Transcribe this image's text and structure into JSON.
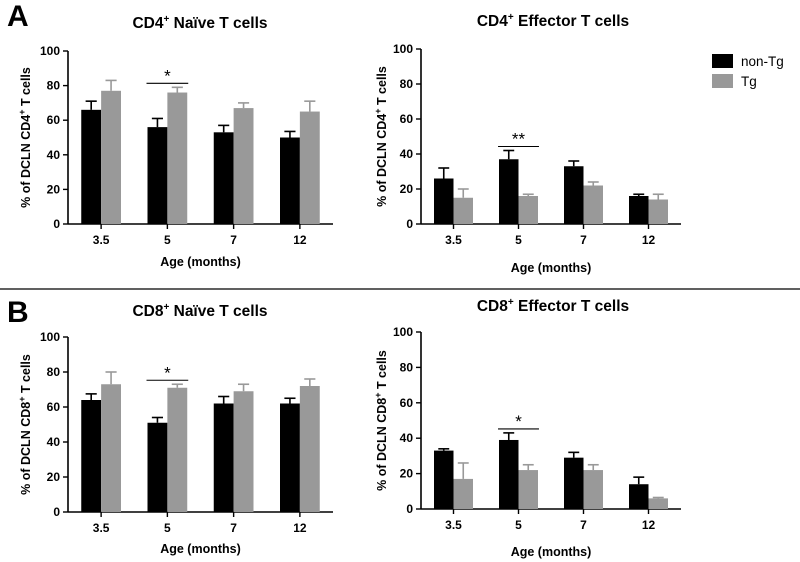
{
  "figure": {
    "panel_a_letter": "A",
    "panel_b_letter": "B",
    "legend": [
      {
        "label": "non-Tg",
        "color": "#000000"
      },
      {
        "label": "Tg",
        "color": "#999999"
      }
    ]
  },
  "chart_data": [
    {
      "type": "bar",
      "title_main": "CD4",
      "title_sup": "+",
      "title_rest": " Naïve T cells",
      "ylabel_main": "% of DCLN CD4",
      "ylabel_sup": "+",
      "ylabel_rest": " T cells",
      "xlabel": "Age (months)",
      "categories": [
        "3.5",
        "5",
        "7",
        "12"
      ],
      "ylim": [
        0,
        100
      ],
      "yticks": [
        "0",
        "20",
        "40",
        "60",
        "80",
        "100"
      ],
      "series": [
        {
          "name": "non-Tg",
          "color": "#000000",
          "values": [
            66,
            56,
            53,
            50
          ],
          "errors": [
            5,
            5,
            4,
            3.5
          ]
        },
        {
          "name": "Tg",
          "color": "#999999",
          "values": [
            77,
            76,
            67,
            65
          ],
          "errors": [
            6,
            3,
            3,
            6
          ]
        }
      ],
      "significance": [
        {
          "category_index": 1,
          "label": "*"
        }
      ]
    },
    {
      "type": "bar",
      "title_main": "CD4",
      "title_sup": "+",
      "title_rest": " Effector T cells",
      "ylabel_main": "% of DCLN CD4",
      "ylabel_sup": "+",
      "ylabel_rest": " T cells",
      "xlabel": "Age (months)",
      "categories": [
        "3.5",
        "5",
        "7",
        "12"
      ],
      "ylim": [
        0,
        100
      ],
      "yticks": [
        "0",
        "20",
        "40",
        "60",
        "80",
        "100"
      ],
      "series": [
        {
          "name": "non-Tg",
          "color": "#000000",
          "values": [
            26,
            37,
            33,
            16
          ],
          "errors": [
            6,
            5,
            3,
            1
          ]
        },
        {
          "name": "Tg",
          "color": "#999999",
          "values": [
            15,
            16,
            22,
            14
          ],
          "errors": [
            5,
            1,
            2,
            3
          ]
        }
      ],
      "significance": [
        {
          "category_index": 1,
          "label": "**"
        }
      ]
    },
    {
      "type": "bar",
      "title_main": "CD8",
      "title_sup": "+",
      "title_rest": " Naïve T cells",
      "ylabel_main": "% of DCLN CD8",
      "ylabel_sup": "+",
      "ylabel_rest": " T cells",
      "xlabel": "Age (months)",
      "categories": [
        "3.5",
        "5",
        "7",
        "12"
      ],
      "ylim": [
        0,
        100
      ],
      "yticks": [
        "0",
        "20",
        "40",
        "60",
        "80",
        "100"
      ],
      "series": [
        {
          "name": "non-Tg",
          "color": "#000000",
          "values": [
            64,
            51,
            62,
            62
          ],
          "errors": [
            3.5,
            3,
            4,
            3
          ]
        },
        {
          "name": "Tg",
          "color": "#999999",
          "values": [
            73,
            71,
            69,
            72
          ],
          "errors": [
            7,
            2,
            4,
            4
          ]
        }
      ],
      "significance": [
        {
          "category_index": 1,
          "label": "*"
        }
      ]
    },
    {
      "type": "bar",
      "title_main": "CD8",
      "title_sup": "+",
      "title_rest": " Effector T cells",
      "ylabel_main": "% of DCLN CD8",
      "ylabel_sup": "+",
      "ylabel_rest": " T cells",
      "xlabel": "Age (months)",
      "categories": [
        "3.5",
        "5",
        "7",
        "12"
      ],
      "ylim": [
        0,
        100
      ],
      "yticks": [
        "0",
        "20",
        "40",
        "60",
        "80",
        "100"
      ],
      "series": [
        {
          "name": "non-Tg",
          "color": "#000000",
          "values": [
            33,
            39,
            29,
            14
          ],
          "errors": [
            1,
            4,
            3,
            4
          ]
        },
        {
          "name": "Tg",
          "color": "#999999",
          "values": [
            17,
            22,
            22,
            6
          ],
          "errors": [
            9,
            3,
            3,
            0.5
          ]
        }
      ],
      "significance": [
        {
          "category_index": 1,
          "label": "*"
        }
      ]
    }
  ]
}
